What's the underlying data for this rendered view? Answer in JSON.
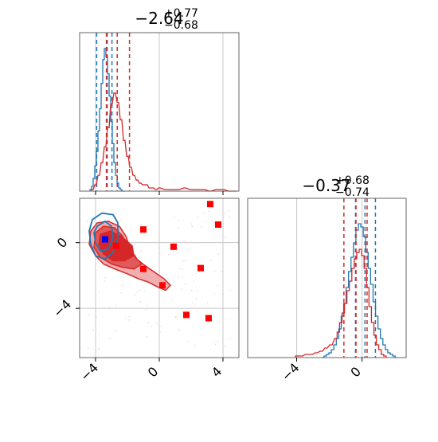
{
  "colors": {
    "blue": "#1f77b4",
    "red": "#d62728",
    "red_fill_light": "#f0a0a0",
    "red_fill_mid": "#e05050",
    "red_fill_dark": "#d62728",
    "grid": "#c8c8c8",
    "axis": "#666666",
    "marker_blue": "#0000ff",
    "marker_red": "#ff0000"
  },
  "chart_data": {
    "type": "corner",
    "panels": [
      {
        "id": "hist-param-1",
        "type": "histogram",
        "title_main": "−2.64",
        "title_sup": "+0.77",
        "title_sub": "−0.68",
        "xlim": [
          -5,
          5
        ],
        "ylim": [
          0,
          1
        ],
        "xticks": [
          -4,
          0,
          4
        ],
        "grid": true,
        "series": [
          {
            "name": "blue",
            "color": "blue",
            "bin_width": 0.1,
            "x": [
              -4.3,
              -4.2,
              -4.1,
              -4.0,
              -3.9,
              -3.8,
              -3.7,
              -3.6,
              -3.5,
              -3.4,
              -3.3,
              -3.2,
              -3.1,
              -3.0,
              -2.9,
              -2.8,
              -2.7,
              -2.6,
              -2.5,
              -2.4,
              -2.3,
              -2.2
            ],
            "y": [
              0.01,
              0.03,
              0.08,
              0.16,
              0.25,
              0.38,
              0.52,
              0.68,
              0.83,
              0.9,
              0.85,
              0.74,
              0.6,
              0.44,
              0.3,
              0.18,
              0.1,
              0.05,
              0.02,
              0.01,
              0.0,
              0.0
            ],
            "quantiles": [
              -3.93,
              -3.27,
              -2.97
            ]
          },
          {
            "name": "red",
            "color": "red",
            "bin_width": 0.1,
            "x": [
              -4.2,
              -4.0,
              -3.8,
              -3.6,
              -3.4,
              -3.2,
              -3.0,
              -2.8,
              -2.6,
              -2.4,
              -2.2,
              -2.0,
              -1.8,
              -1.6,
              -1.4,
              -1.2,
              -1.0,
              -0.8,
              -0.6,
              -0.4,
              -0.2,
              0.0,
              0.4,
              0.8,
              1.2,
              1.6,
              2.0,
              2.4,
              2.8,
              3.2,
              3.6,
              4.0,
              4.4,
              4.8
            ],
            "y": [
              0.01,
              0.04,
              0.1,
              0.18,
              0.28,
              0.4,
              0.55,
              0.62,
              0.56,
              0.45,
              0.32,
              0.22,
              0.15,
              0.1,
              0.07,
              0.05,
              0.04,
              0.04,
              0.02,
              0.02,
              0.01,
              0.02,
              0.01,
              0.01,
              0.01,
              0.02,
              0.01,
              0.01,
              0.01,
              0.0,
              0.01,
              0.01,
              0.0,
              0.0
            ],
            "quantiles": [
              -3.32,
              -2.64,
              -1.87
            ]
          }
        ]
      },
      {
        "id": "hist-param-2",
        "type": "histogram",
        "title_main": "−0.37",
        "title_sup": "+0.68",
        "title_sub": "−0.74",
        "xlim": [
          -7,
          2.7
        ],
        "ylim": [
          0,
          1
        ],
        "xticks": [
          -4,
          0
        ],
        "grid": true,
        "series": [
          {
            "name": "blue",
            "color": "blue",
            "bin_width": 0.15,
            "x": [
              -2.4,
              -2.25,
              -2.1,
              -1.95,
              -1.8,
              -1.65,
              -1.5,
              -1.35,
              -1.2,
              -1.05,
              -0.9,
              -0.75,
              -0.6,
              -0.45,
              -0.3,
              -0.15,
              0.0,
              0.15,
              0.3,
              0.45,
              0.6,
              0.75,
              0.9,
              1.05,
              1.2,
              1.35,
              1.5,
              1.65,
              1.8,
              1.95,
              2.1
            ],
            "y": [
              0.0,
              0.01,
              0.02,
              0.03,
              0.05,
              0.08,
              0.12,
              0.18,
              0.26,
              0.34,
              0.44,
              0.54,
              0.63,
              0.72,
              0.8,
              0.84,
              0.82,
              0.76,
              0.66,
              0.56,
              0.46,
              0.35,
              0.26,
              0.18,
              0.12,
              0.08,
              0.05,
              0.03,
              0.02,
              0.01,
              0.0
            ],
            "quantiles": [
              -0.4,
              0.18,
              0.82
            ]
          },
          {
            "name": "red",
            "color": "red",
            "bin_width": 0.15,
            "x": [
              -4.0,
              -3.7,
              -3.4,
              -3.1,
              -2.8,
              -2.5,
              -2.2,
              -1.9,
              -1.6,
              -1.45,
              -1.3,
              -1.15,
              -1.0,
              -0.85,
              -0.7,
              -0.55,
              -0.4,
              -0.25,
              -0.1,
              0.05,
              0.2,
              0.35,
              0.5,
              0.65,
              0.8,
              0.95,
              1.1,
              1.25,
              1.4
            ],
            "y": [
              0.01,
              0.01,
              0.02,
              0.02,
              0.03,
              0.04,
              0.06,
              0.08,
              0.12,
              0.16,
              0.22,
              0.28,
              0.34,
              0.42,
              0.48,
              0.56,
              0.62,
              0.66,
              0.68,
              0.64,
              0.56,
              0.44,
              0.32,
              0.22,
              0.14,
              0.08,
              0.05,
              0.02,
              0.01
            ],
            "quantiles": [
              -1.11,
              -0.37,
              0.31
            ]
          }
        ]
      },
      {
        "id": "scatter-2d",
        "type": "contour-scatter",
        "xlim": [
          -5,
          5
        ],
        "ylim": [
          -7,
          2.7
        ],
        "xticks": [
          -4,
          0,
          4
        ],
        "yticks": [
          0,
          -4
        ],
        "grid": true,
        "blue_markers": [
          {
            "x": -3.4,
            "y": 0.2
          }
        ],
        "red_markers": [
          {
            "x": 3.2,
            "y": 2.35
          },
          {
            "x": 3.7,
            "y": 1.1
          },
          {
            "x": -1.0,
            "y": 0.8
          },
          {
            "x": -2.7,
            "y": -0.2
          },
          {
            "x": 0.9,
            "y": -0.25
          },
          {
            "x": -1.0,
            "y": -1.6
          },
          {
            "x": 2.6,
            "y": -1.55
          },
          {
            "x": 0.2,
            "y": -2.6
          },
          {
            "x": 1.7,
            "y": -4.4
          },
          {
            "x": 3.1,
            "y": -4.6
          }
        ]
      }
    ]
  }
}
